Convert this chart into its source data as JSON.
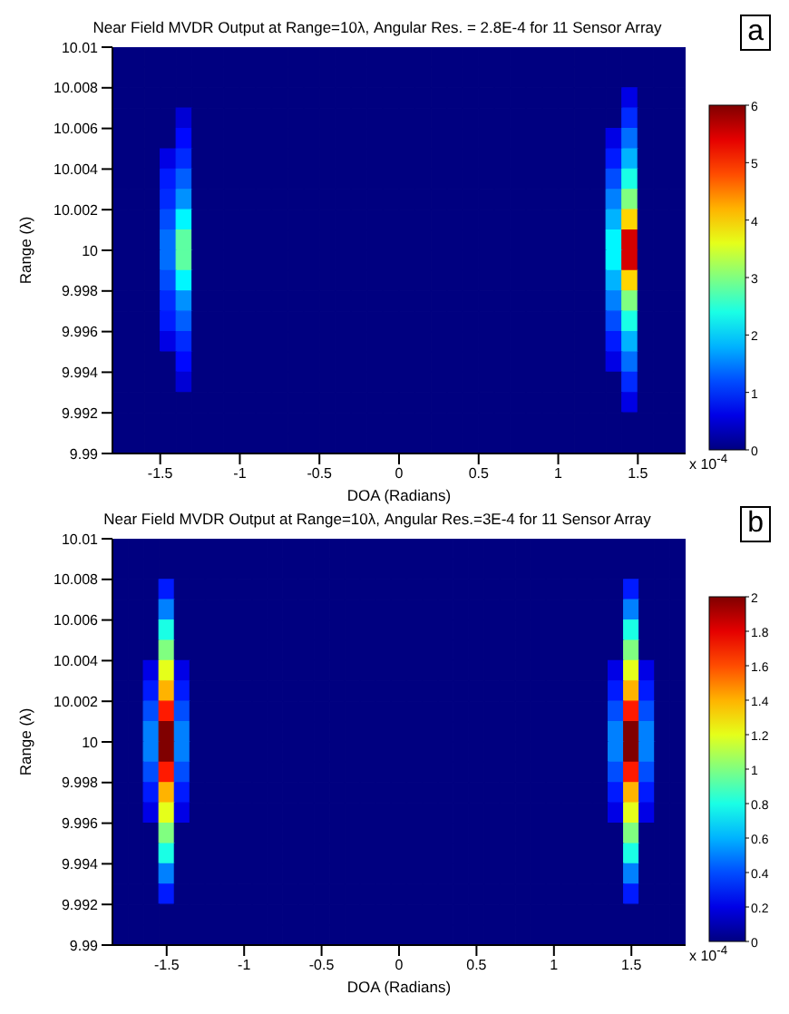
{
  "chart_data": [
    {
      "type": "heatmap",
      "title": "Near Field MVDR Output at Range=10λ, Angular Res. = 2.8E-4 for 11 Sensor Array",
      "xlabel": "DOA (Radians)",
      "ylabel": "Range (λ)",
      "annotations": [
        "x 10$^{-4}$",
        "a"
      ],
      "xlim": [
        -1.8,
        1.8
      ],
      "xticks": [
        -1.5,
        -1,
        -0.5,
        0,
        0.5,
        1,
        1.5
      ],
      "ylim": [
        9.99,
        10.01
      ],
      "yticks": [
        9.99,
        9.992,
        9.994,
        9.996,
        9.998,
        10,
        10.002,
        10.004,
        10.006,
        10.008,
        10.01
      ],
      "clim": [
        0,
        6
      ],
      "cticks": [
        0,
        1,
        2,
        3,
        4,
        5,
        6
      ],
      "cells": [
        [
          0,
          0,
          0,
          0,
          0,
          0,
          0,
          0,
          0,
          0,
          0,
          0,
          0,
          0,
          0,
          0,
          0,
          0,
          0,
          0,
          0,
          0,
          0,
          0,
          0,
          0,
          0,
          0,
          0,
          0,
          0,
          0,
          0,
          0,
          0,
          0
        ],
        [
          0,
          0,
          0,
          0,
          0,
          0,
          0,
          0,
          0,
          0,
          0,
          0,
          0,
          0,
          0,
          0,
          0,
          0,
          0,
          0,
          0,
          0,
          0,
          0,
          0,
          0,
          0,
          0,
          0,
          0,
          0,
          0,
          0,
          0,
          0,
          0
        ],
        [
          0,
          0,
          0,
          0,
          0,
          0,
          0,
          0,
          0,
          0,
          0,
          0,
          0,
          0,
          0,
          0,
          0,
          0,
          0,
          0,
          0,
          0,
          0,
          0,
          0,
          0,
          0,
          0,
          0,
          0,
          0,
          0,
          0.6,
          0,
          0,
          0
        ],
        [
          0,
          0,
          0,
          0,
          0.5,
          0,
          0,
          0,
          0,
          0,
          0,
          0,
          0,
          0,
          0,
          0,
          0,
          0,
          0,
          0,
          0,
          0,
          0,
          0,
          0,
          0,
          0,
          0,
          0,
          0,
          0,
          0,
          1.0,
          0,
          0,
          0
        ],
        [
          0,
          0,
          0,
          0,
          0.8,
          0,
          0,
          0,
          0,
          0,
          0,
          0,
          0,
          0,
          0,
          0,
          0,
          0,
          0,
          0,
          0,
          0,
          0,
          0,
          0,
          0,
          0,
          0,
          0,
          0,
          0,
          0.6,
          1.4,
          0,
          0,
          0
        ],
        [
          0,
          0,
          0,
          0.6,
          1.0,
          0,
          0,
          0,
          0,
          0,
          0,
          0,
          0,
          0,
          0,
          0,
          0,
          0,
          0,
          0,
          0,
          0,
          0,
          0,
          0,
          0,
          0,
          0,
          0,
          0,
          0,
          0.9,
          1.8,
          0,
          0,
          0
        ],
        [
          0,
          0,
          0,
          0.9,
          1.3,
          0,
          0,
          0,
          0,
          0,
          0,
          0,
          0,
          0,
          0,
          0,
          0,
          0,
          0,
          0,
          0,
          0,
          0,
          0,
          0,
          0,
          0,
          0,
          0,
          0,
          0,
          1.2,
          2.4,
          0,
          0,
          0
        ],
        [
          0,
          0,
          0,
          1.0,
          1.6,
          0,
          0,
          0,
          0,
          0,
          0,
          0,
          0,
          0,
          0,
          0,
          0,
          0,
          0,
          0,
          0,
          0,
          0,
          0,
          0,
          0,
          0,
          0,
          0,
          0,
          0,
          1.5,
          3.0,
          0,
          0,
          0
        ],
        [
          0,
          0,
          0,
          1.2,
          2.2,
          0,
          0,
          0,
          0,
          0,
          0,
          0,
          0,
          0,
          0,
          0,
          0,
          0,
          0,
          0,
          0,
          0,
          0,
          0,
          0,
          0,
          0,
          0,
          0,
          0,
          0,
          1.8,
          4.0,
          0,
          0,
          0
        ],
        [
          0,
          0,
          0,
          1.4,
          2.8,
          0,
          0,
          0,
          0,
          0,
          0,
          0,
          0,
          0,
          0,
          0,
          0,
          0,
          0,
          0,
          0,
          0,
          0,
          0,
          0,
          0,
          0,
          0,
          0,
          0,
          0,
          2.2,
          5.5,
          0,
          0,
          0
        ],
        [
          0,
          0,
          0,
          1.4,
          2.8,
          0,
          0,
          0,
          0,
          0,
          0,
          0,
          0,
          0,
          0,
          0,
          0,
          0,
          0,
          0,
          0,
          0,
          0,
          0,
          0,
          0,
          0,
          0,
          0,
          0,
          0,
          2.2,
          5.5,
          0,
          0,
          0
        ],
        [
          0,
          0,
          0,
          1.2,
          2.2,
          0,
          0,
          0,
          0,
          0,
          0,
          0,
          0,
          0,
          0,
          0,
          0,
          0,
          0,
          0,
          0,
          0,
          0,
          0,
          0,
          0,
          0,
          0,
          0,
          0,
          0,
          1.8,
          4.0,
          0,
          0,
          0
        ],
        [
          0,
          0,
          0,
          1.0,
          1.6,
          0,
          0,
          0,
          0,
          0,
          0,
          0,
          0,
          0,
          0,
          0,
          0,
          0,
          0,
          0,
          0,
          0,
          0,
          0,
          0,
          0,
          0,
          0,
          0,
          0,
          0,
          1.5,
          3.0,
          0,
          0,
          0
        ],
        [
          0,
          0,
          0,
          0.9,
          1.3,
          0,
          0,
          0,
          0,
          0,
          0,
          0,
          0,
          0,
          0,
          0,
          0,
          0,
          0,
          0,
          0,
          0,
          0,
          0,
          0,
          0,
          0,
          0,
          0,
          0,
          0,
          1.2,
          2.4,
          0,
          0,
          0
        ],
        [
          0,
          0,
          0,
          0.6,
          1.0,
          0,
          0,
          0,
          0,
          0,
          0,
          0,
          0,
          0,
          0,
          0,
          0,
          0,
          0,
          0,
          0,
          0,
          0,
          0,
          0,
          0,
          0,
          0,
          0,
          0,
          0,
          0.9,
          1.8,
          0,
          0,
          0
        ],
        [
          0,
          0,
          0,
          0,
          0.8,
          0,
          0,
          0,
          0,
          0,
          0,
          0,
          0,
          0,
          0,
          0,
          0,
          0,
          0,
          0,
          0,
          0,
          0,
          0,
          0,
          0,
          0,
          0,
          0,
          0,
          0,
          0.6,
          1.4,
          0,
          0,
          0
        ],
        [
          0,
          0,
          0,
          0,
          0.5,
          0,
          0,
          0,
          0,
          0,
          0,
          0,
          0,
          0,
          0,
          0,
          0,
          0,
          0,
          0,
          0,
          0,
          0,
          0,
          0,
          0,
          0,
          0,
          0,
          0,
          0,
          0,
          1.0,
          0,
          0,
          0
        ],
        [
          0,
          0,
          0,
          0,
          0,
          0,
          0,
          0,
          0,
          0,
          0,
          0,
          0,
          0,
          0,
          0,
          0,
          0,
          0,
          0,
          0,
          0,
          0,
          0,
          0,
          0,
          0,
          0,
          0,
          0,
          0,
          0,
          0.6,
          0,
          0,
          0
        ],
        [
          0,
          0,
          0,
          0,
          0,
          0,
          0,
          0,
          0,
          0,
          0,
          0,
          0,
          0,
          0,
          0,
          0,
          0,
          0,
          0,
          0,
          0,
          0,
          0,
          0,
          0,
          0,
          0,
          0,
          0,
          0,
          0,
          0,
          0,
          0,
          0
        ],
        [
          0,
          0,
          0,
          0,
          0,
          0,
          0,
          0,
          0,
          0,
          0,
          0,
          0,
          0,
          0,
          0,
          0,
          0,
          0,
          0,
          0,
          0,
          0,
          0,
          0,
          0,
          0,
          0,
          0,
          0,
          0,
          0,
          0,
          0,
          0,
          0
        ]
      ]
    },
    {
      "type": "heatmap",
      "title": "Near Field MVDR Output at Range=10λ, Angular Res.=3E-4 for 11 Sensor Array",
      "xlabel": "DOA (Radians)",
      "ylabel": "Range (λ)",
      "annotations": [
        "x 10$^{-4}$",
        "b"
      ],
      "xlim": [
        -1.85,
        1.85
      ],
      "xticks": [
        -1.5,
        -1,
        -0.5,
        0,
        0.5,
        1,
        1.5
      ],
      "ylim": [
        9.99,
        10.01
      ],
      "yticks": [
        9.99,
        9.992,
        9.994,
        9.996,
        9.998,
        10,
        10.002,
        10.004,
        10.006,
        10.008,
        10.01
      ],
      "clim": [
        0,
        2
      ],
      "cticks": [
        0,
        0.2,
        0.4,
        0.6,
        0.8,
        1,
        1.2,
        1.4,
        1.6,
        1.8,
        2
      ],
      "cells": [
        [
          0,
          0,
          0,
          0,
          0,
          0,
          0,
          0,
          0,
          0,
          0,
          0,
          0,
          0,
          0,
          0,
          0,
          0,
          0,
          0,
          0,
          0,
          0,
          0,
          0,
          0,
          0,
          0,
          0,
          0,
          0,
          0,
          0,
          0,
          0,
          0,
          0
        ],
        [
          0,
          0,
          0,
          0,
          0,
          0,
          0,
          0,
          0,
          0,
          0,
          0,
          0,
          0,
          0,
          0,
          0,
          0,
          0,
          0,
          0,
          0,
          0,
          0,
          0,
          0,
          0,
          0,
          0,
          0,
          0,
          0,
          0,
          0,
          0,
          0,
          0
        ],
        [
          0,
          0,
          0,
          0.3,
          0,
          0,
          0,
          0,
          0,
          0,
          0,
          0,
          0,
          0,
          0,
          0,
          0,
          0,
          0,
          0,
          0,
          0,
          0,
          0,
          0,
          0,
          0,
          0,
          0,
          0,
          0,
          0,
          0,
          0.3,
          0,
          0,
          0
        ],
        [
          0,
          0,
          0,
          0.5,
          0,
          0,
          0,
          0,
          0,
          0,
          0,
          0,
          0,
          0,
          0,
          0,
          0,
          0,
          0,
          0,
          0,
          0,
          0,
          0,
          0,
          0,
          0,
          0,
          0,
          0,
          0,
          0,
          0,
          0.5,
          0,
          0,
          0
        ],
        [
          0,
          0,
          0,
          0.8,
          0,
          0,
          0,
          0,
          0,
          0,
          0,
          0,
          0,
          0,
          0,
          0,
          0,
          0,
          0,
          0,
          0,
          0,
          0,
          0,
          0,
          0,
          0,
          0,
          0,
          0,
          0,
          0,
          0,
          0.8,
          0,
          0,
          0
        ],
        [
          0,
          0,
          0,
          1.0,
          0,
          0,
          0,
          0,
          0,
          0,
          0,
          0,
          0,
          0,
          0,
          0,
          0,
          0,
          0,
          0,
          0,
          0,
          0,
          0,
          0,
          0,
          0,
          0,
          0,
          0,
          0,
          0,
          0,
          1.0,
          0,
          0,
          0
        ],
        [
          0,
          0,
          0.2,
          1.2,
          0.2,
          0,
          0,
          0,
          0,
          0,
          0,
          0,
          0,
          0,
          0,
          0,
          0,
          0,
          0,
          0,
          0,
          0,
          0,
          0,
          0,
          0,
          0,
          0,
          0,
          0,
          0,
          0,
          0.2,
          1.2,
          0.2,
          0,
          0
        ],
        [
          0,
          0,
          0.3,
          1.4,
          0.3,
          0,
          0,
          0,
          0,
          0,
          0,
          0,
          0,
          0,
          0,
          0,
          0,
          0,
          0,
          0,
          0,
          0,
          0,
          0,
          0,
          0,
          0,
          0,
          0,
          0,
          0,
          0,
          0.3,
          1.4,
          0.3,
          0,
          0
        ],
        [
          0,
          0,
          0.4,
          1.7,
          0.4,
          0,
          0,
          0,
          0,
          0,
          0,
          0,
          0,
          0,
          0,
          0,
          0,
          0,
          0,
          0,
          0,
          0,
          0,
          0,
          0,
          0,
          0,
          0,
          0,
          0,
          0,
          0,
          0.4,
          1.7,
          0.4,
          0,
          0
        ],
        [
          0,
          0,
          0.5,
          2.0,
          0.5,
          0,
          0,
          0,
          0,
          0,
          0,
          0,
          0,
          0,
          0,
          0,
          0,
          0,
          0,
          0,
          0,
          0,
          0,
          0,
          0,
          0,
          0,
          0,
          0,
          0,
          0,
          0,
          0.5,
          2.0,
          0.5,
          0,
          0
        ],
        [
          0,
          0,
          0.5,
          2.0,
          0.5,
          0,
          0,
          0,
          0,
          0,
          0,
          0,
          0,
          0,
          0,
          0,
          0,
          0,
          0,
          0,
          0,
          0,
          0,
          0,
          0,
          0,
          0,
          0,
          0,
          0,
          0,
          0,
          0.5,
          2.0,
          0.5,
          0,
          0
        ],
        [
          0,
          0,
          0.4,
          1.7,
          0.4,
          0,
          0,
          0,
          0,
          0,
          0,
          0,
          0,
          0,
          0,
          0,
          0,
          0,
          0,
          0,
          0,
          0,
          0,
          0,
          0,
          0,
          0,
          0,
          0,
          0,
          0,
          0,
          0.4,
          1.7,
          0.4,
          0,
          0
        ],
        [
          0,
          0,
          0.3,
          1.4,
          0.3,
          0,
          0,
          0,
          0,
          0,
          0,
          0,
          0,
          0,
          0,
          0,
          0,
          0,
          0,
          0,
          0,
          0,
          0,
          0,
          0,
          0,
          0,
          0,
          0,
          0,
          0,
          0,
          0.3,
          1.4,
          0.3,
          0,
          0
        ],
        [
          0,
          0,
          0.2,
          1.2,
          0.2,
          0,
          0,
          0,
          0,
          0,
          0,
          0,
          0,
          0,
          0,
          0,
          0,
          0,
          0,
          0,
          0,
          0,
          0,
          0,
          0,
          0,
          0,
          0,
          0,
          0,
          0,
          0,
          0.2,
          1.2,
          0.2,
          0,
          0
        ],
        [
          0,
          0,
          0,
          1.0,
          0,
          0,
          0,
          0,
          0,
          0,
          0,
          0,
          0,
          0,
          0,
          0,
          0,
          0,
          0,
          0,
          0,
          0,
          0,
          0,
          0,
          0,
          0,
          0,
          0,
          0,
          0,
          0,
          0,
          1.0,
          0,
          0,
          0
        ],
        [
          0,
          0,
          0,
          0.8,
          0,
          0,
          0,
          0,
          0,
          0,
          0,
          0,
          0,
          0,
          0,
          0,
          0,
          0,
          0,
          0,
          0,
          0,
          0,
          0,
          0,
          0,
          0,
          0,
          0,
          0,
          0,
          0,
          0,
          0.8,
          0,
          0,
          0
        ],
        [
          0,
          0,
          0,
          0.5,
          0,
          0,
          0,
          0,
          0,
          0,
          0,
          0,
          0,
          0,
          0,
          0,
          0,
          0,
          0,
          0,
          0,
          0,
          0,
          0,
          0,
          0,
          0,
          0,
          0,
          0,
          0,
          0,
          0,
          0.5,
          0,
          0,
          0
        ],
        [
          0,
          0,
          0,
          0.3,
          0,
          0,
          0,
          0,
          0,
          0,
          0,
          0,
          0,
          0,
          0,
          0,
          0,
          0,
          0,
          0,
          0,
          0,
          0,
          0,
          0,
          0,
          0,
          0,
          0,
          0,
          0,
          0,
          0,
          0.3,
          0,
          0,
          0
        ],
        [
          0,
          0,
          0,
          0,
          0,
          0,
          0,
          0,
          0,
          0,
          0,
          0,
          0,
          0,
          0,
          0,
          0,
          0,
          0,
          0,
          0,
          0,
          0,
          0,
          0,
          0,
          0,
          0,
          0,
          0,
          0,
          0,
          0,
          0,
          0,
          0,
          0
        ],
        [
          0,
          0,
          0,
          0,
          0,
          0,
          0,
          0,
          0,
          0,
          0,
          0,
          0,
          0,
          0,
          0,
          0,
          0,
          0,
          0,
          0,
          0,
          0,
          0,
          0,
          0,
          0,
          0,
          0,
          0,
          0,
          0,
          0,
          0,
          0,
          0,
          0
        ]
      ]
    }
  ]
}
